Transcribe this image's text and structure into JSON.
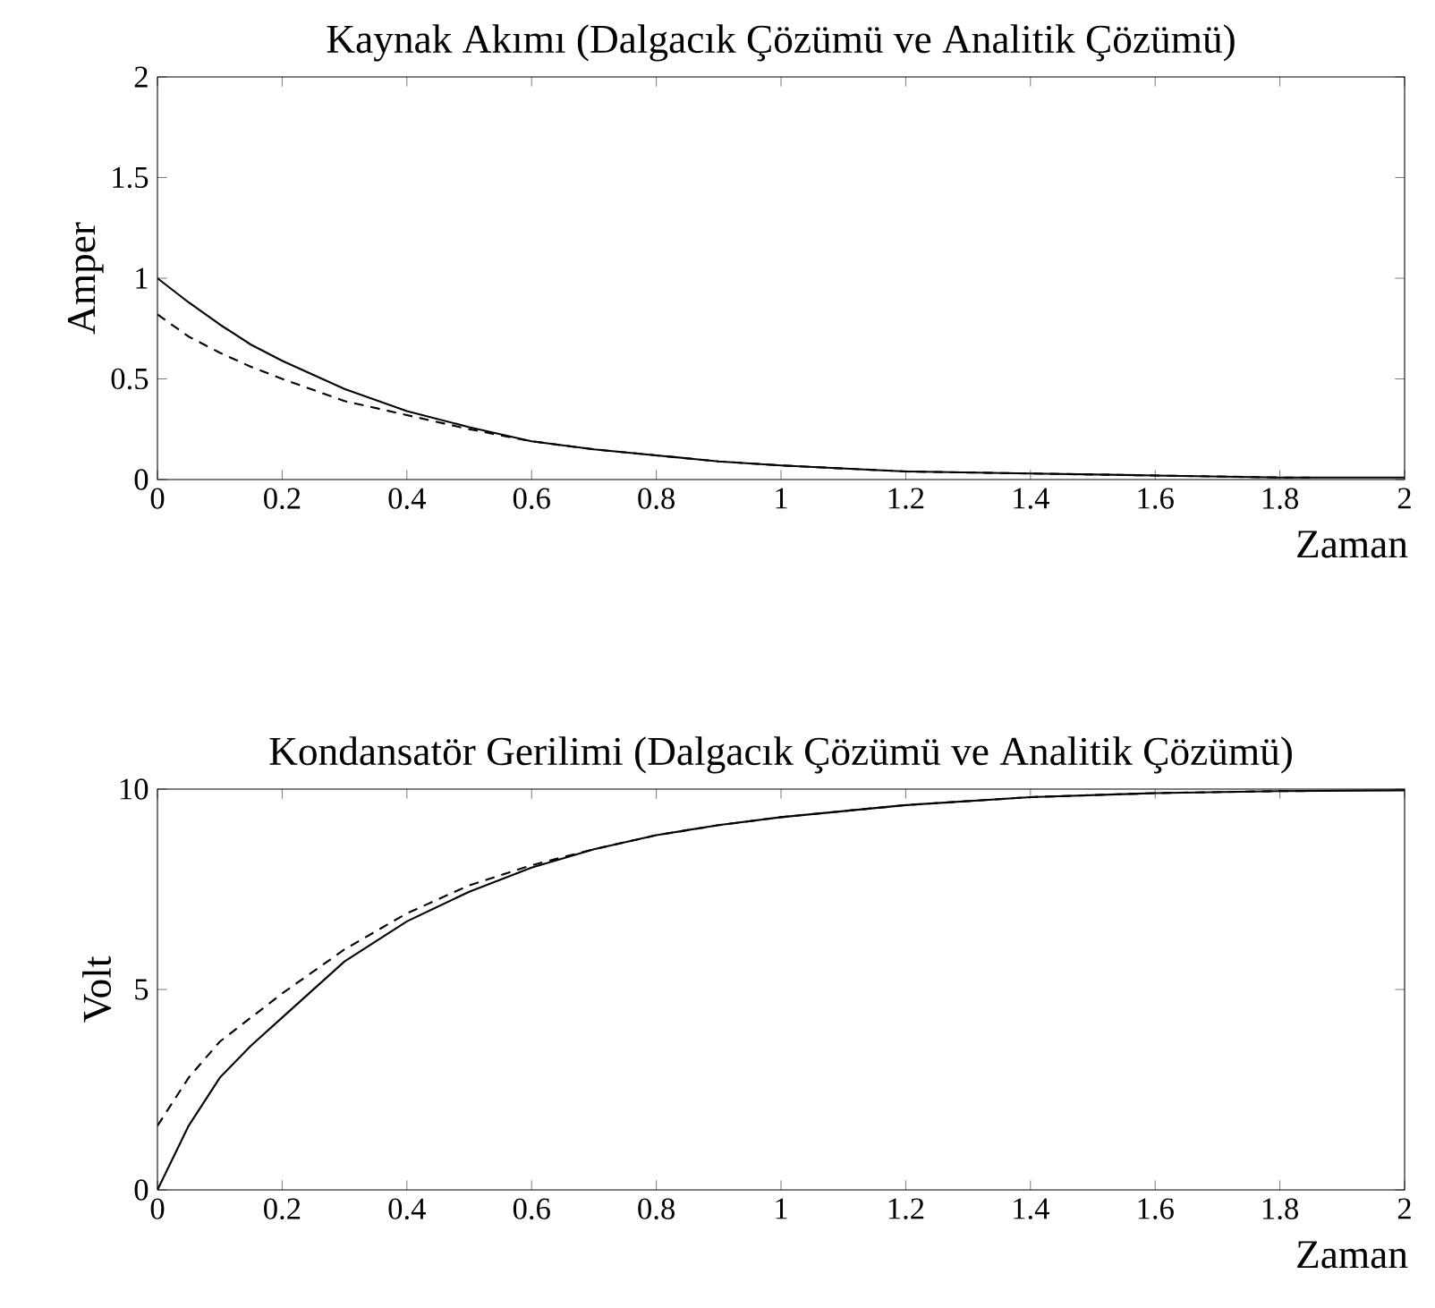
{
  "chart_data": [
    {
      "type": "line",
      "title": "Kaynak Akımı (Dalgacık Çözümü ve Analitik Çözümü)",
      "xlabel": "Zaman",
      "ylabel": "Amper",
      "xlim": [
        0,
        2
      ],
      "ylim": [
        0,
        2
      ],
      "xticks": [
        0,
        0.2,
        0.4,
        0.6,
        0.8,
        1,
        1.2,
        1.4,
        1.6,
        1.8,
        2
      ],
      "yticks": [
        0,
        0.5,
        1,
        1.5,
        2
      ],
      "series": [
        {
          "color": "#000000",
          "line_style": "solid",
          "x": [
            0,
            0.05,
            0.1,
            0.15,
            0.2,
            0.3,
            0.4,
            0.5,
            0.6,
            0.7,
            0.8,
            0.9,
            1.0,
            1.2,
            1.4,
            1.6,
            1.8,
            2.0
          ],
          "values": [
            1.0,
            0.88,
            0.77,
            0.67,
            0.59,
            0.45,
            0.34,
            0.26,
            0.19,
            0.15,
            0.12,
            0.09,
            0.07,
            0.04,
            0.03,
            0.02,
            0.01,
            0.01
          ]
        },
        {
          "color": "#000000",
          "line_style": "dashed",
          "x": [
            0,
            0.05,
            0.1,
            0.15,
            0.2,
            0.3,
            0.4,
            0.5,
            0.6,
            0.7,
            0.8,
            0.9,
            1.0,
            1.2,
            1.4,
            1.6,
            1.8,
            1.85
          ],
          "values": [
            0.82,
            0.71,
            0.63,
            0.56,
            0.5,
            0.39,
            0.32,
            0.25,
            0.19,
            0.15,
            0.12,
            0.09,
            0.07,
            0.04,
            0.03,
            0.02,
            0.01,
            0.01
          ]
        }
      ]
    },
    {
      "type": "line",
      "title": "Kondansatör Gerilimi (Dalgacık Çözümü ve Analitik Çözümü)",
      "xlabel": "Zaman",
      "ylabel": "Volt",
      "xlim": [
        0,
        2
      ],
      "ylim": [
        0,
        10
      ],
      "xticks": [
        0,
        0.2,
        0.4,
        0.6,
        0.8,
        1,
        1.2,
        1.4,
        1.6,
        1.8,
        2
      ],
      "yticks": [
        0,
        5,
        10
      ],
      "series": [
        {
          "color": "#000000",
          "line_style": "solid",
          "x": [
            0,
            0.05,
            0.1,
            0.15,
            0.2,
            0.3,
            0.4,
            0.5,
            0.6,
            0.7,
            0.8,
            0.9,
            1.0,
            1.2,
            1.4,
            1.6,
            1.8,
            2.0
          ],
          "values": [
            0,
            1.6,
            2.8,
            3.6,
            4.3,
            5.7,
            6.7,
            7.44,
            8.04,
            8.5,
            8.85,
            9.1,
            9.3,
            9.6,
            9.8,
            9.9,
            9.95,
            9.97
          ]
        },
        {
          "color": "#000000",
          "line_style": "dashed",
          "x": [
            0,
            0.05,
            0.1,
            0.15,
            0.2,
            0.3,
            0.4,
            0.5,
            0.6,
            0.7,
            0.8,
            0.9,
            1.0,
            1.2,
            1.4,
            1.6,
            1.8,
            1.85
          ],
          "values": [
            1.6,
            2.8,
            3.7,
            4.3,
            4.9,
            6.0,
            6.9,
            7.6,
            8.1,
            8.5,
            8.85,
            9.1,
            9.3,
            9.6,
            9.8,
            9.9,
            9.95,
            9.95
          ]
        }
      ]
    }
  ]
}
